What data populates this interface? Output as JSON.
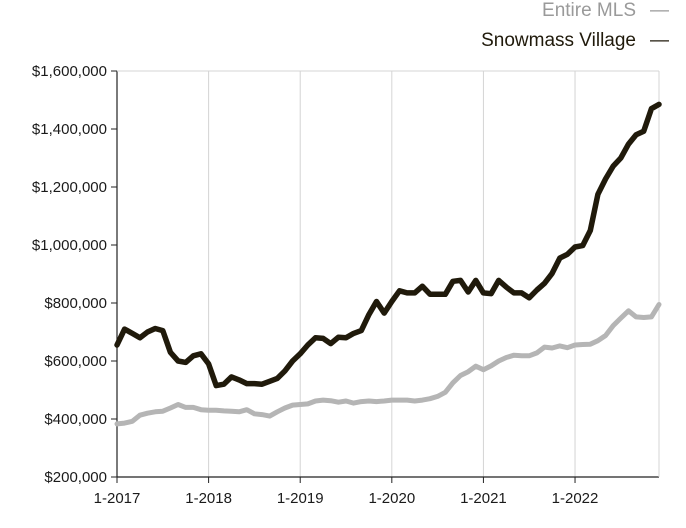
{
  "chart_data": {
    "type": "line",
    "title": "",
    "xlabel": "",
    "ylabel": "",
    "x_tick_labels": [
      "1-2017",
      "1-2018",
      "1-2019",
      "1-2020",
      "1-2021",
      "1-2022"
    ],
    "y_tick_labels": [
      "$200,000",
      "$400,000",
      "$600,000",
      "$800,000",
      "$1,000,000",
      "$1,200,000",
      "$1,400,000",
      "$1,600,000"
    ],
    "ylim": [
      200000,
      1600000
    ],
    "grid": "vertical",
    "legend_position": "top-right",
    "x": [
      "1-2017",
      "2-2017",
      "3-2017",
      "4-2017",
      "5-2017",
      "6-2017",
      "7-2017",
      "8-2017",
      "9-2017",
      "10-2017",
      "11-2017",
      "12-2017",
      "1-2018",
      "2-2018",
      "3-2018",
      "4-2018",
      "5-2018",
      "6-2018",
      "7-2018",
      "8-2018",
      "9-2018",
      "10-2018",
      "11-2018",
      "12-2018",
      "1-2019",
      "2-2019",
      "3-2019",
      "4-2019",
      "5-2019",
      "6-2019",
      "7-2019",
      "8-2019",
      "9-2019",
      "10-2019",
      "11-2019",
      "12-2019",
      "1-2020",
      "2-2020",
      "3-2020",
      "4-2020",
      "5-2020",
      "6-2020",
      "7-2020",
      "8-2020",
      "9-2020",
      "10-2020",
      "11-2020",
      "12-2020",
      "1-2021",
      "2-2021",
      "3-2021",
      "4-2021",
      "5-2021",
      "6-2021",
      "7-2021",
      "8-2021",
      "9-2021",
      "10-2021",
      "11-2021",
      "12-2021",
      "1-2022",
      "2-2022",
      "3-2022",
      "4-2022",
      "5-2022",
      "6-2022",
      "7-2022",
      "8-2022",
      "9-2022",
      "10-2022",
      "11-2022",
      "12-2022"
    ],
    "series": [
      {
        "name": "Entire MLS",
        "color": "#b5b5b5",
        "values": [
          383000,
          386000,
          392000,
          413000,
          420000,
          425000,
          427000,
          438000,
          450000,
          440000,
          440000,
          432000,
          430000,
          430000,
          428000,
          427000,
          425000,
          432000,
          418000,
          415000,
          410000,
          425000,
          438000,
          448000,
          450000,
          452000,
          462000,
          465000,
          463000,
          458000,
          462000,
          455000,
          460000,
          462000,
          460000,
          462000,
          465000,
          465000,
          465000,
          462000,
          465000,
          470000,
          478000,
          492000,
          525000,
          550000,
          563000,
          582000,
          570000,
          583000,
          600000,
          612000,
          620000,
          618000,
          618000,
          628000,
          648000,
          645000,
          652000,
          646000,
          655000,
          657000,
          658000,
          670000,
          688000,
          722000,
          748000,
          773000,
          752000,
          750000,
          752000,
          795000
        ]
      },
      {
        "name": "Snowmass Village",
        "color": "#201a0b",
        "values": [
          655000,
          710000,
          695000,
          680000,
          700000,
          712000,
          705000,
          630000,
          600000,
          595000,
          618000,
          625000,
          590000,
          515000,
          520000,
          545000,
          535000,
          522000,
          522000,
          520000,
          530000,
          540000,
          566000,
          600000,
          625000,
          655000,
          680000,
          678000,
          660000,
          682000,
          680000,
          695000,
          705000,
          760000,
          805000,
          765000,
          805000,
          842000,
          835000,
          835000,
          858000,
          830000,
          830000,
          830000,
          875000,
          878000,
          838000,
          878000,
          835000,
          832000,
          878000,
          855000,
          835000,
          835000,
          818000,
          845000,
          868000,
          902000,
          955000,
          968000,
          993000,
          998000,
          1050000,
          1175000,
          1228000,
          1272000,
          1300000,
          1348000,
          1380000,
          1392000,
          1470000,
          1485000
        ]
      }
    ],
    "legend": [
      {
        "label": "Entire MLS",
        "marker": "—"
      },
      {
        "label": "Snowmass Village",
        "marker": "—"
      }
    ]
  }
}
